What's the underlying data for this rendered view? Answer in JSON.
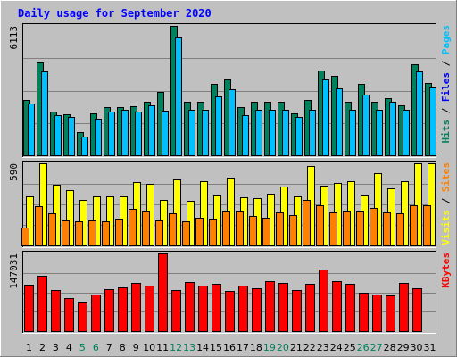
{
  "chart_data": {
    "type": "bar",
    "title": "Daily usage for September 2020",
    "days": [
      "1",
      "2",
      "3",
      "4",
      "5",
      "6",
      "7",
      "8",
      "9",
      "10",
      "11",
      "12",
      "13",
      "14",
      "15",
      "16",
      "17",
      "18",
      "19",
      "20",
      "21",
      "22",
      "23",
      "24",
      "25",
      "26",
      "27",
      "28",
      "29",
      "30",
      "31"
    ],
    "weekend_days": [
      "5",
      "6",
      "12",
      "13",
      "19",
      "20",
      "26",
      "27"
    ],
    "colors": {
      "hits": "#00805c",
      "files": "#00c0ff",
      "visits": "#ffff00",
      "sites": "#ff8000",
      "kbytes": "#ff0000",
      "day_label": "#000000",
      "weekend_label": "#00805c"
    },
    "panels": [
      {
        "id": "hits-files",
        "ymax_label": "6113",
        "ymax": 6113,
        "legend": [
          {
            "text": "Hits",
            "color": "#00805c"
          },
          {
            "text": " / ",
            "color": "#000000"
          },
          {
            "text": "Files",
            "color": "#0000ff"
          },
          {
            "text": " / ",
            "color": "#000000"
          },
          {
            "text": "Pages",
            "color": "#00c0ff"
          }
        ],
        "series": [
          {
            "name": "Hits",
            "color": "#00805c",
            "values": [
              2600,
              4400,
              2050,
              1920,
              1080,
              2000,
              2280,
              2260,
              2300,
              2550,
              3000,
              6113,
              2550,
              2550,
              3360,
              3580,
              2280,
              2550,
              2550,
              2550,
              2000,
              2600,
              4000,
              3740,
              2550,
              3380,
              2550,
              2700,
              2350,
              4300,
              3400
            ]
          },
          {
            "name": "Files",
            "color": "#00c0ff",
            "values": [
              2450,
              3980,
              1900,
              1820,
              900,
              1720,
              2080,
              2150,
              2050,
              2350,
              2100,
              5550,
              2150,
              2150,
              2780,
              3130,
              1900,
              2150,
              2150,
              2150,
              1820,
              2130,
              3600,
              3150,
              2150,
              2850,
              2150,
              2550,
              2150,
              3950,
              3220
            ]
          },
          {
            "name": "Pages",
            "color": "#00c0ff",
            "values": [
              0,
              0,
              0,
              0,
              0,
              0,
              0,
              0,
              0,
              0,
              0,
              0,
              0,
              0,
              0,
              0,
              0,
              0,
              0,
              0,
              0,
              0,
              0,
              0,
              0,
              0,
              0,
              0,
              0,
              0,
              0
            ]
          }
        ]
      },
      {
        "id": "visits-sites",
        "ymax_label": "590",
        "ymax": 590,
        "legend": [
          {
            "text": "Visits",
            "color": "#ffff00"
          },
          {
            "text": " / ",
            "color": "#000000"
          },
          {
            "text": "Sites",
            "color": "#ff8000"
          }
        ],
        "series": [
          {
            "name": "Visits",
            "color": "#ffff00",
            "values": [
              355,
              590,
              435,
              400,
              325,
              350,
              350,
              350,
              455,
              445,
              325,
              475,
              320,
              460,
              360,
              490,
              345,
              340,
              375,
              425,
              355,
              570,
              430,
              450,
              460,
              360,
              520,
              410,
              460,
              590,
              590
            ]
          },
          {
            "name": "Sites",
            "color": "#ff8000",
            "values": [
              130,
              285,
              230,
              180,
              170,
              180,
              170,
              190,
              260,
              250,
              180,
              230,
              170,
              200,
              190,
              250,
              250,
              210,
              200,
              240,
              220,
              330,
              290,
              240,
              250,
              250,
              270,
              240,
              230,
              290,
              290
            ]
          }
        ]
      },
      {
        "id": "kbytes",
        "ymax_label": "147031",
        "ymax": 147031,
        "legend": [
          {
            "text": "KBytes",
            "color": "#ff0000"
          }
        ],
        "series": [
          {
            "name": "KBytes",
            "color": "#ff0000",
            "values": [
              88000,
              105000,
              78000,
              63000,
              56000,
              69000,
              80000,
              82000,
              91000,
              87000,
              147031,
              77000,
              93000,
              86000,
              90000,
              76000,
              87000,
              81000,
              94000,
              92000,
              77000,
              89000,
              116000,
              95000,
              90000,
              72000,
              70000,
              68000,
              91000,
              81000,
              0
            ]
          }
        ]
      }
    ]
  }
}
